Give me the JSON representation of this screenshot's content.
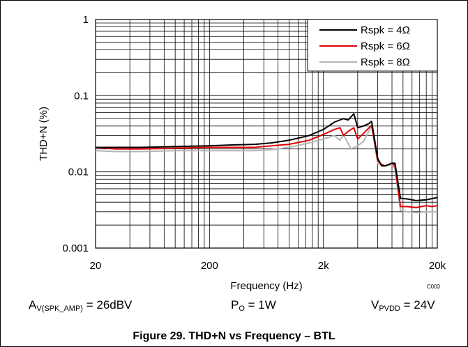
{
  "chart_data": {
    "type": "line",
    "xlabel": "Frequency (Hz)",
    "ylabel": "THD+N (%)",
    "x_scale": "log",
    "y_scale": "log",
    "xlim": [
      20,
      20000
    ],
    "ylim": [
      0.001,
      1
    ],
    "x_ticks": [
      {
        "value": 20,
        "label": "20"
      },
      {
        "value": 200,
        "label": "200"
      },
      {
        "value": 2000,
        "label": "2k"
      },
      {
        "value": 20000,
        "label": "20k"
      }
    ],
    "y_ticks": [
      {
        "value": 1,
        "label": "1"
      },
      {
        "value": 0.1,
        "label": "0.1"
      },
      {
        "value": 0.01,
        "label": "0.01"
      },
      {
        "value": 0.001,
        "label": "0.001"
      }
    ],
    "grid": true,
    "legend_position": "top-right",
    "annotation": "C003",
    "series": [
      {
        "name": "Rspk = 4Ω",
        "color": "#000000",
        "points": [
          [
            20,
            0.021
          ],
          [
            30,
            0.021
          ],
          [
            50,
            0.021
          ],
          [
            100,
            0.0215
          ],
          [
            200,
            0.022
          ],
          [
            300,
            0.0225
          ],
          [
            500,
            0.023
          ],
          [
            700,
            0.024
          ],
          [
            1000,
            0.026
          ],
          [
            1500,
            0.03
          ],
          [
            2000,
            0.036
          ],
          [
            2500,
            0.045
          ],
          [
            3000,
            0.05
          ],
          [
            3300,
            0.048
          ],
          [
            3700,
            0.058
          ],
          [
            4000,
            0.038
          ],
          [
            4500,
            0.04
          ],
          [
            5000,
            0.043
          ],
          [
            5300,
            0.046
          ],
          [
            6000,
            0.015
          ],
          [
            6500,
            0.012
          ],
          [
            7000,
            0.012
          ],
          [
            8000,
            0.013
          ],
          [
            8500,
            0.013
          ],
          [
            9500,
            0.0045
          ],
          [
            11000,
            0.0044
          ],
          [
            13000,
            0.0042
          ],
          [
            16000,
            0.0043
          ],
          [
            20000,
            0.0046
          ]
        ]
      },
      {
        "name": "Rspk = 6Ω",
        "color": "#e00000",
        "points": [
          [
            20,
            0.021
          ],
          [
            30,
            0.02
          ],
          [
            50,
            0.02
          ],
          [
            100,
            0.0205
          ],
          [
            200,
            0.021
          ],
          [
            300,
            0.021
          ],
          [
            500,
            0.021
          ],
          [
            700,
            0.022
          ],
          [
            1000,
            0.023
          ],
          [
            1500,
            0.026
          ],
          [
            2000,
            0.031
          ],
          [
            2500,
            0.036
          ],
          [
            2800,
            0.038
          ],
          [
            3000,
            0.03
          ],
          [
            3300,
            0.034
          ],
          [
            3700,
            0.038
          ],
          [
            4000,
            0.027
          ],
          [
            4500,
            0.032
          ],
          [
            5300,
            0.041
          ],
          [
            6000,
            0.014
          ],
          [
            6500,
            0.0125
          ],
          [
            7000,
            0.012
          ],
          [
            8000,
            0.013
          ],
          [
            8500,
            0.012
          ],
          [
            9500,
            0.0035
          ],
          [
            11000,
            0.0035
          ],
          [
            13000,
            0.0034
          ],
          [
            16000,
            0.0036
          ],
          [
            18000,
            0.0035
          ],
          [
            20000,
            0.0036
          ]
        ]
      },
      {
        "name": "Rspk = 8Ω",
        "color": "#b4b4b4",
        "points": [
          [
            20,
            0.019
          ],
          [
            30,
            0.0185
          ],
          [
            50,
            0.0185
          ],
          [
            100,
            0.019
          ],
          [
            200,
            0.019
          ],
          [
            300,
            0.019
          ],
          [
            500,
            0.019
          ],
          [
            700,
            0.0195
          ],
          [
            1000,
            0.021
          ],
          [
            1500,
            0.024
          ],
          [
            2000,
            0.027
          ],
          [
            2500,
            0.03
          ],
          [
            2800,
            0.026
          ],
          [
            3000,
            0.031
          ],
          [
            3500,
            0.02
          ],
          [
            4000,
            0.022
          ],
          [
            4500,
            0.025
          ],
          [
            5300,
            0.04
          ],
          [
            6000,
            0.013
          ],
          [
            6500,
            0.012
          ],
          [
            7000,
            0.012
          ],
          [
            8000,
            0.0125
          ],
          [
            8500,
            0.011
          ],
          [
            9500,
            0.0031
          ],
          [
            11000,
            0.003
          ],
          [
            13000,
            0.0029
          ],
          [
            16000,
            0.003
          ],
          [
            20000,
            0.003
          ]
        ]
      }
    ]
  },
  "conditions": {
    "gain_main": "A",
    "gain_sub": "V(SPK_AMP)",
    "gain_rest": " = 26dBV",
    "power_main": "P",
    "power_sub": "O",
    "power_rest": " = 1W",
    "supply_main": "V",
    "supply_sub": "PVDD",
    "supply_rest": " = 24V"
  },
  "caption": "Figure 29. THD+N vs Frequency – BTL"
}
